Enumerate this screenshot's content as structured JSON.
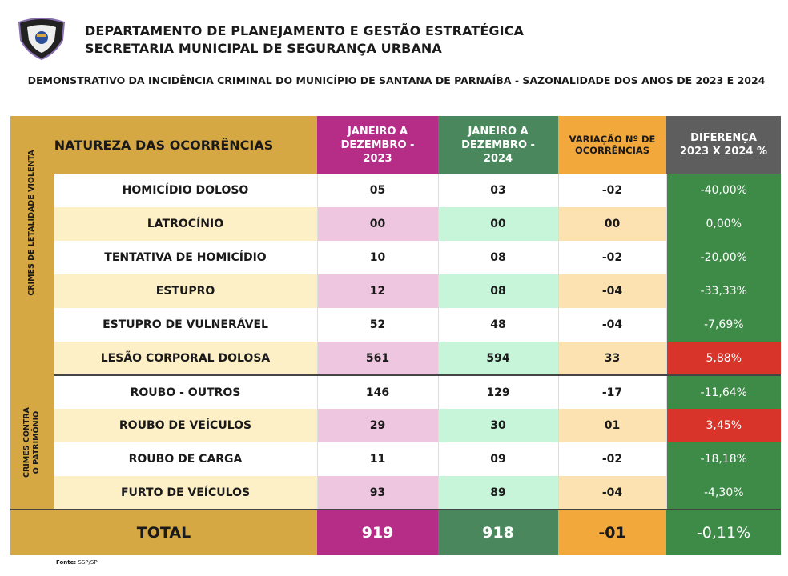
{
  "header": {
    "line1": "DEPARTAMENTO DE PLANEJAMENTO E GESTÃO ESTRATÉGICA",
    "line2": "SECRETARIA MUNICIPAL DE SEGURANÇA URBANA",
    "title": "DEMONSTRATIVO DA INCIDÊNCIA CRIMINAL DO MUNICÍPIO DE SANTANA DE PARNAÍBA - SAZONALIDADE DOS ANOS DE 2023 E 2024"
  },
  "columns": {
    "nature": "NATUREZA DAS OCORRÊNCIAS",
    "y2023": "JANEIRO A DEZEMBRO - 2023",
    "y2024": "JANEIRO A DEZEMBRO - 2024",
    "variation": "VARIAÇÃO Nº DE OCORRÊNCIAS",
    "difference": "DIFERENÇA 2023 X 2024 %"
  },
  "groups": [
    "CRIMES DE LETALIDADE VIOLENTA",
    "CRIMES CONTRA O PATRIMÔNIO"
  ],
  "rows": [
    {
      "name": "HOMICÍDIO DOLOSO",
      "y2023": "05",
      "y2024": "03",
      "var": "-02",
      "diff": "-40,00%"
    },
    {
      "name": "LATROCÍNIO",
      "y2023": "00",
      "y2024": "00",
      "var": "00",
      "diff": "0,00%"
    },
    {
      "name": "TENTATIVA DE HOMICÍDIO",
      "y2023": "10",
      "y2024": "08",
      "var": "-02",
      "diff": "-20,00%"
    },
    {
      "name": "ESTUPRO",
      "y2023": "12",
      "y2024": "08",
      "var": "-04",
      "diff": "-33,33%"
    },
    {
      "name": "ESTUPRO DE VULNERÁVEL",
      "y2023": "52",
      "y2024": "48",
      "var": "-04",
      "diff": "-7,69%"
    },
    {
      "name": "LESÃO CORPORAL DOLOSA",
      "y2023": "561",
      "y2024": "594",
      "var": "33",
      "diff": "5,88%"
    },
    {
      "name": "ROUBO - OUTROS",
      "y2023": "146",
      "y2024": "129",
      "var": "-17",
      "diff": "-11,64%"
    },
    {
      "name": "ROUBO DE VEÍCULOS",
      "y2023": "29",
      "y2024": "30",
      "var": "01",
      "diff": "3,45%"
    },
    {
      "name": "ROUBO DE CARGA",
      "y2023": "11",
      "y2024": "09",
      "var": "-02",
      "diff": "-18,18%"
    },
    {
      "name": "FURTO DE VEÍCULOS",
      "y2023": "93",
      "y2024": "89",
      "var": "-04",
      "diff": "-4,30%"
    }
  ],
  "total": {
    "label": "TOTAL",
    "y2023": "919",
    "y2024": "918",
    "var": "-01",
    "diff": "-0,11%"
  },
  "footer": {
    "source_label": "Fonte:",
    "source": "SSP/SP"
  },
  "colors": {
    "gold": "#d5a843",
    "magenta": "#b52d87",
    "green": "#4a875d",
    "orange": "#f2a83a",
    "gray": "#5e5e5e",
    "diff_green": "#3e8b48",
    "diff_red": "#d8342a"
  }
}
